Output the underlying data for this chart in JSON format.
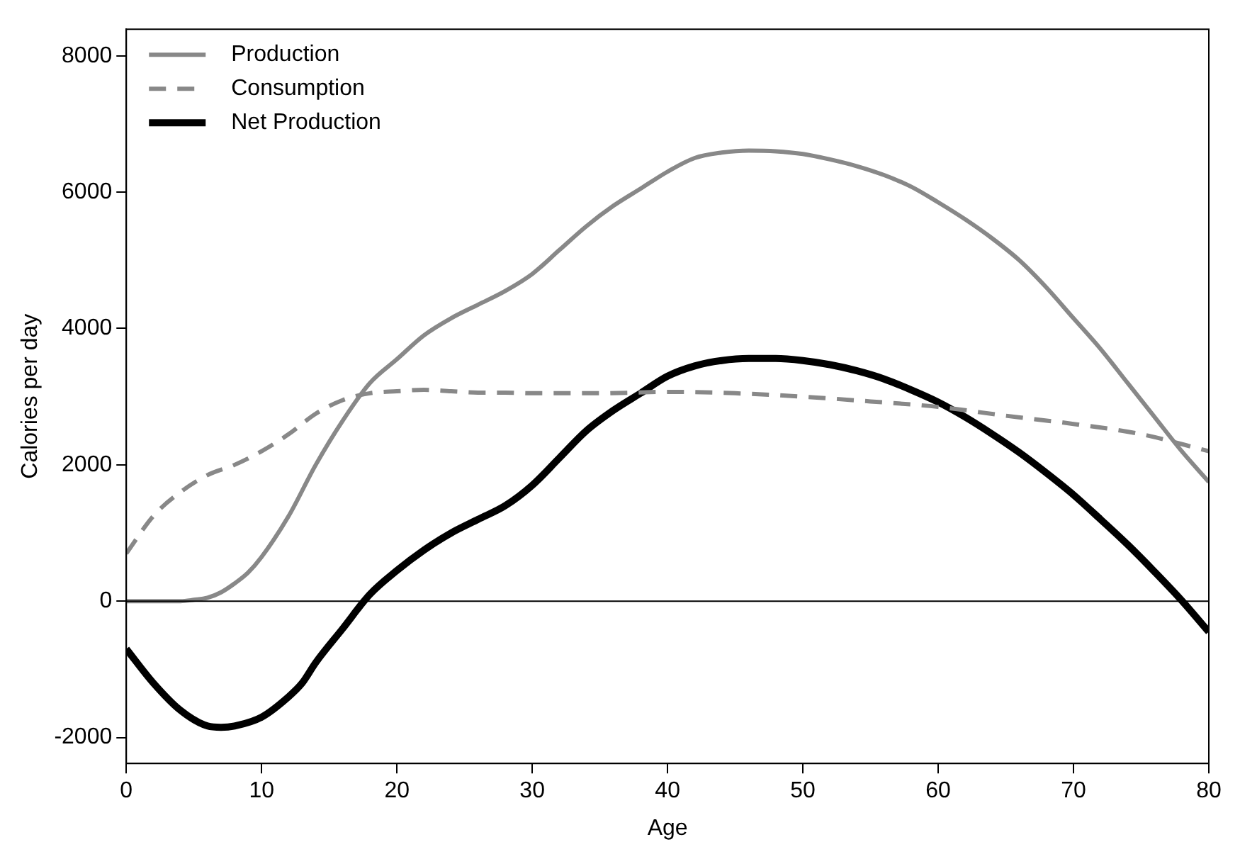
{
  "chart_data": {
    "type": "line",
    "xlabel": "Age",
    "ylabel": "Calories per day",
    "xlim": [
      0,
      80
    ],
    "xticks": [
      0,
      10,
      20,
      30,
      40,
      50,
      60,
      70,
      80
    ],
    "ylim": [
      -2380,
      8390
    ],
    "yticks": [
      -2000,
      0,
      2000,
      4000,
      6000,
      8000
    ],
    "grid": false,
    "legend": "top left",
    "marker": "none",
    "ref_lines": [
      {
        "axis": "y",
        "value": 0,
        "color": "#000000",
        "line_style": "solid"
      }
    ],
    "series": [
      {
        "name": "Production",
        "color": "#888888",
        "line_style": "solid",
        "x": [
          0,
          2,
          4,
          5,
          6,
          7,
          8,
          9,
          10,
          12,
          14,
          16,
          18,
          20,
          22,
          24,
          26,
          28,
          30,
          32,
          34,
          36,
          38,
          40,
          42,
          44,
          46,
          48,
          50,
          52,
          54,
          56,
          58,
          60,
          62,
          64,
          66,
          68,
          70,
          72,
          74,
          76,
          78,
          80
        ],
        "values": [
          0,
          0,
          0,
          20,
          50,
          130,
          260,
          420,
          650,
          1250,
          2000,
          2650,
          3200,
          3550,
          3900,
          4150,
          4350,
          4550,
          4800,
          5150,
          5500,
          5800,
          6050,
          6300,
          6500,
          6580,
          6610,
          6600,
          6560,
          6480,
          6380,
          6250,
          6080,
          5850,
          5600,
          5320,
          5000,
          4600,
          4150,
          3700,
          3200,
          2700,
          2200,
          1750
        ]
      },
      {
        "name": "Consumption",
        "color": "#888888",
        "line_style": "dashed",
        "x": [
          0,
          2,
          4,
          6,
          8,
          10,
          12,
          14,
          16,
          18,
          20,
          22,
          24,
          26,
          28,
          30,
          35,
          40,
          45,
          50,
          55,
          60,
          65,
          70,
          75,
          80
        ],
        "values": [
          700,
          1250,
          1600,
          1850,
          2000,
          2200,
          2450,
          2750,
          2950,
          3050,
          3080,
          3100,
          3080,
          3060,
          3060,
          3050,
          3050,
          3070,
          3050,
          3000,
          2930,
          2850,
          2720,
          2600,
          2450,
          2200
        ]
      },
      {
        "name": "Net Production",
        "color": "#000000",
        "line_style": "solid",
        "x": [
          0,
          2,
          4,
          6,
          7,
          8,
          10,
          12,
          13,
          14,
          16,
          18,
          20,
          22,
          24,
          26,
          28,
          30,
          32,
          34,
          36,
          38,
          40,
          42,
          44,
          46,
          48,
          50,
          52,
          54,
          56,
          58,
          60,
          62,
          64,
          66,
          68,
          70,
          72,
          74,
          76,
          78,
          80
        ],
        "values": [
          -700,
          -1200,
          -1600,
          -1830,
          -1850,
          -1830,
          -1700,
          -1400,
          -1200,
          -900,
          -400,
          100,
          450,
          750,
          1000,
          1200,
          1400,
          1700,
          2100,
          2500,
          2800,
          3050,
          3300,
          3450,
          3530,
          3560,
          3560,
          3530,
          3470,
          3380,
          3260,
          3100,
          2920,
          2700,
          2450,
          2180,
          1880,
          1560,
          1200,
          830,
          430,
          10,
          -450
        ]
      }
    ]
  }
}
